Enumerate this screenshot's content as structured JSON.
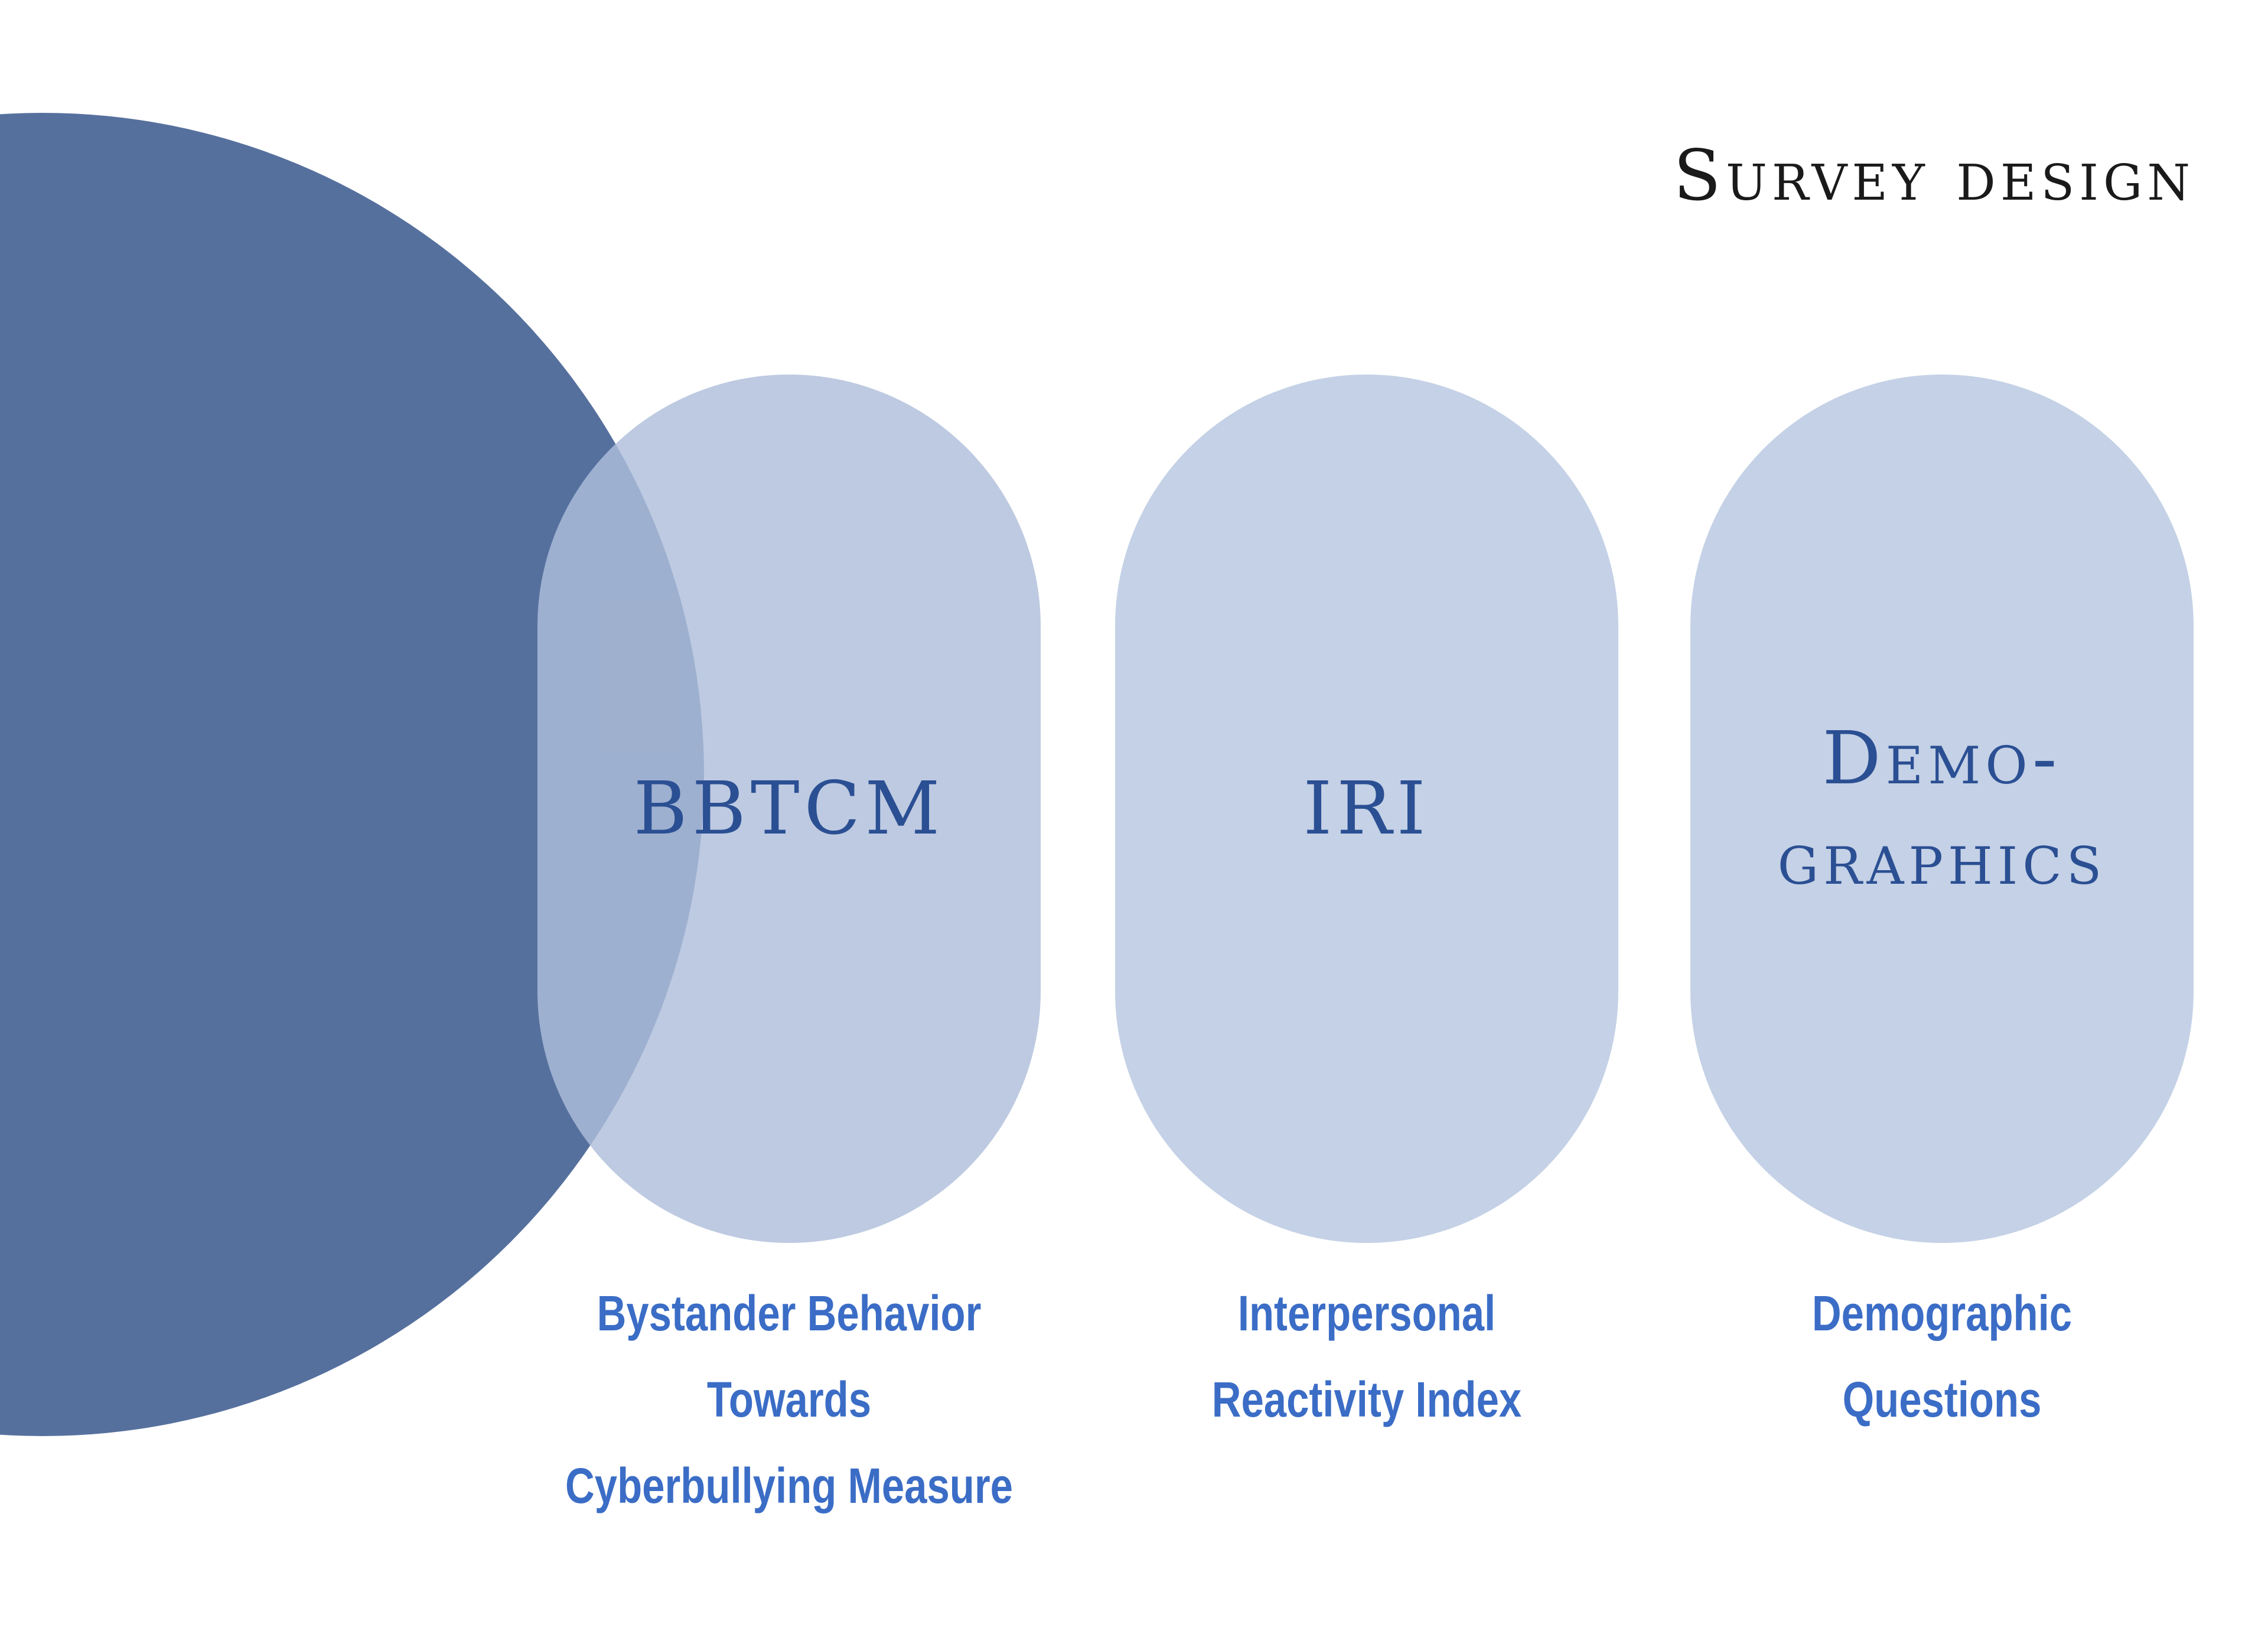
{
  "slide": {
    "title": "Survey design"
  },
  "pills": [
    {
      "label": "BBTCM",
      "caption_line1": "Bystander Behavior Towards",
      "caption_line2": "Cyberbullying Measure"
    },
    {
      "label": "IRI",
      "caption_line1": "Interpersonal",
      "caption_line2": "Reactivity Index"
    },
    {
      "label": "Demo-\ngraphics",
      "caption_line1": "Demographic",
      "caption_line2": "Questions"
    }
  ],
  "colors": {
    "circle": "#56709e",
    "pill": "#c4d1e6",
    "pill_text": "#2b4f93",
    "caption_text": "#3b6dc6"
  }
}
